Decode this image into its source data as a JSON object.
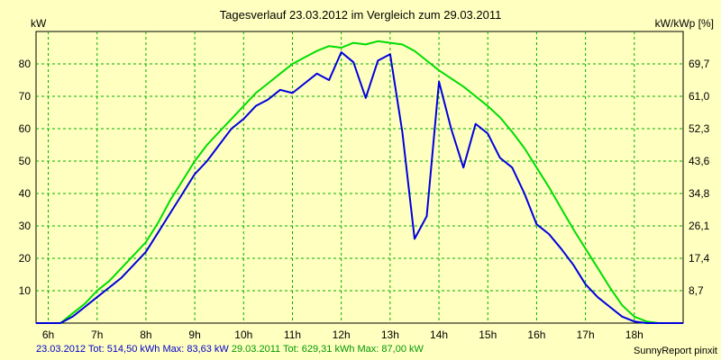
{
  "header": {
    "title": "Tagesverlauf 23.03.2012 im Vergleich zum 29.03.2011",
    "unit_left": "kW",
    "unit_right": "kW/kWp [%]"
  },
  "footer": {
    "series1": "23.03.2012 Tot: 514,50 kWh Max: 83,63 kW",
    "series2": "29.03.2011 Tot: 629,31 kWh Max: 87,00 kW",
    "credit": "SunnyReport pinxit"
  },
  "chart_data": {
    "type": "line",
    "xlabel": "",
    "ylabel": "kW",
    "y2label": "kW/kWp [%]",
    "xlim": [
      5.75,
      19.0
    ],
    "ylim": [
      0,
      90
    ],
    "grid": true,
    "x_ticks": [
      6,
      7,
      8,
      9,
      10,
      11,
      12,
      13,
      14,
      15,
      16,
      17,
      18
    ],
    "x_tick_labels": [
      "6h",
      "7h",
      "8h",
      "9h",
      "10h",
      "11h",
      "12h",
      "13h",
      "14h",
      "15h",
      "16h",
      "17h",
      "18h"
    ],
    "y_ticks": [
      10,
      20,
      30,
      40,
      50,
      60,
      70,
      80
    ],
    "y_tick_labels": [
      "10",
      "20",
      "30",
      "40",
      "50",
      "60",
      "70",
      "80"
    ],
    "y2_tick_labels": [
      "8,7",
      "17,4",
      "26,1",
      "34,8",
      "43,6",
      "52,3",
      "61,0",
      "69,7"
    ],
    "series": [
      {
        "name": "23.03.2012",
        "color": "#0000dd",
        "x": [
          5.75,
          6.25,
          6.5,
          6.75,
          7.0,
          7.25,
          7.5,
          7.75,
          8.0,
          8.25,
          8.5,
          8.75,
          9.0,
          9.25,
          9.5,
          9.75,
          10.0,
          10.25,
          10.5,
          10.75,
          11.0,
          11.25,
          11.5,
          11.75,
          12.0,
          12.25,
          12.5,
          12.75,
          13.0,
          13.25,
          13.5,
          13.75,
          14.0,
          14.25,
          14.5,
          14.75,
          15.0,
          15.25,
          15.5,
          15.75,
          16.0,
          16.25,
          16.5,
          16.75,
          17.0,
          17.25,
          17.5,
          17.75,
          18.0,
          18.25,
          18.5,
          19.0
        ],
        "y": [
          0,
          0,
          2,
          5,
          8,
          11,
          14,
          18,
          22,
          28,
          34,
          40,
          46,
          50,
          55,
          60,
          63,
          67,
          69,
          72,
          71,
          74,
          77,
          75,
          83.6,
          80.5,
          69.5,
          81,
          83,
          59,
          26,
          33,
          74.5,
          60,
          48,
          61.5,
          58.5,
          51,
          48,
          40,
          30.5,
          27.5,
          23,
          18,
          12,
          8,
          5,
          2,
          0.5,
          0,
          0,
          0
        ]
      },
      {
        "name": "29.03.2011",
        "color": "#00dd00",
        "x": [
          5.75,
          6.25,
          6.5,
          6.75,
          7.0,
          7.25,
          7.5,
          7.75,
          8.0,
          8.25,
          8.5,
          8.75,
          9.0,
          9.25,
          9.5,
          9.75,
          10.0,
          10.25,
          10.5,
          10.75,
          11.0,
          11.25,
          11.5,
          11.75,
          12.0,
          12.25,
          12.5,
          12.75,
          13.0,
          13.25,
          13.5,
          13.75,
          14.0,
          14.25,
          14.5,
          14.75,
          15.0,
          15.25,
          15.5,
          15.75,
          16.0,
          16.25,
          16.5,
          16.75,
          17.0,
          17.25,
          17.5,
          17.75,
          18.0,
          18.25,
          18.5,
          19.0
        ],
        "y": [
          0,
          0,
          3,
          6,
          10,
          13,
          17,
          21,
          25,
          31,
          38,
          44,
          50,
          55,
          59,
          63,
          67,
          71,
          74,
          77,
          80,
          82,
          84,
          85.5,
          85,
          86.5,
          86,
          87,
          86.5,
          86,
          84,
          81,
          78,
          75.5,
          73,
          70,
          67,
          63.5,
          59,
          54,
          48,
          42,
          35.5,
          29,
          23,
          17,
          11,
          5.5,
          2,
          0.5,
          0,
          0
        ]
      }
    ]
  }
}
